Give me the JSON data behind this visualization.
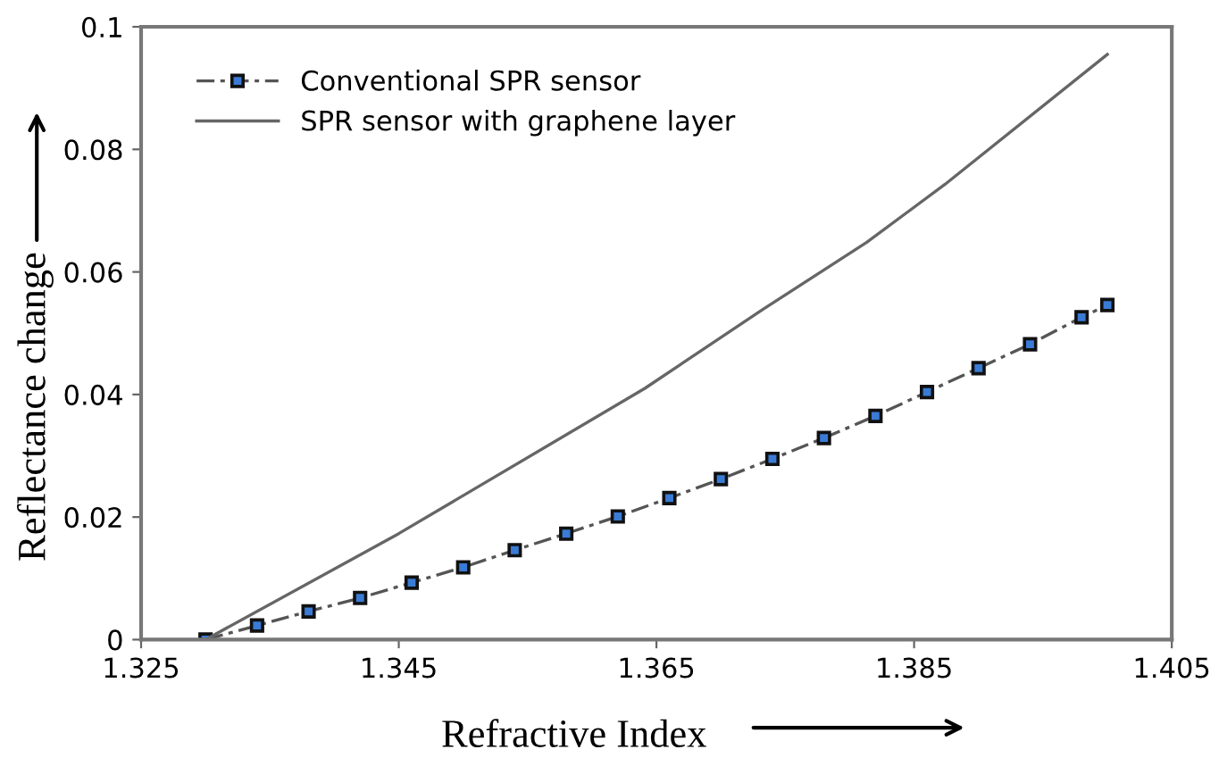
{
  "chart_data": {
    "type": "line",
    "xlabel": "Refractive Index",
    "ylabel": "Reflectance change",
    "xlim": [
      1.325,
      1.405
    ],
    "xticks": [
      1.325,
      1.345,
      1.365,
      1.385,
      1.405
    ],
    "ylim": [
      0,
      0.1
    ],
    "yticks": [
      0,
      0.02,
      0.04,
      0.06,
      0.08,
      0.1
    ],
    "grid": false,
    "legend": "top left",
    "series": [
      {
        "name": "Conventional SPR sensor",
        "color": "#555555",
        "marker": "square",
        "line_style": "dashed",
        "x": [
          1.33,
          1.334,
          1.338,
          1.342,
          1.346,
          1.35,
          1.354,
          1.358,
          1.362,
          1.366,
          1.37,
          1.374,
          1.378,
          1.382,
          1.386,
          1.39,
          1.394,
          1.398,
          1.4
        ],
        "values": [
          0,
          0.0023,
          0.0046,
          0.0068,
          0.0093,
          0.0118,
          0.0146,
          0.0173,
          0.0201,
          0.0231,
          0.0262,
          0.0295,
          0.0329,
          0.0365,
          0.0404,
          0.0443,
          0.0482,
          0.0526,
          0.0546
        ]
      },
      {
        "name": "SPR sensor with graphene layer",
        "color": "#666666",
        "marker": "none",
        "line_style": "solid",
        "x": [
          1.33,
          1.345,
          1.3641,
          1.3732,
          1.3813,
          1.3874,
          1.4
        ],
        "values": [
          0,
          0.0173,
          0.041,
          0.0538,
          0.0648,
          0.0743,
          0.0955
        ]
      }
    ]
  }
}
